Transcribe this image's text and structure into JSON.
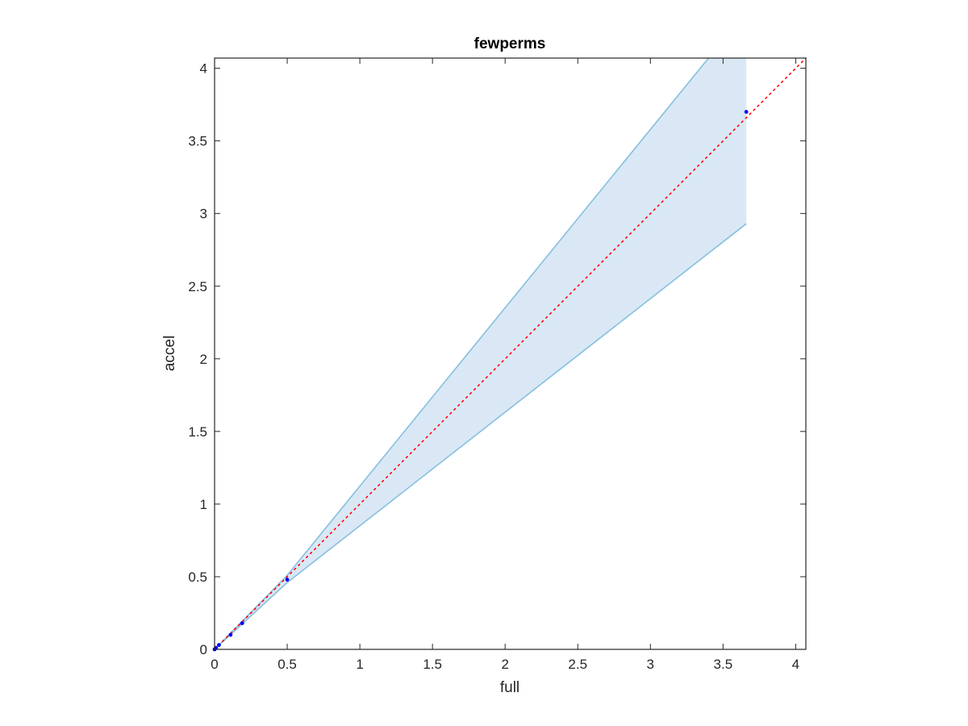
{
  "chart_data": {
    "type": "scatter",
    "title": "fewperms",
    "xlabel": "full",
    "ylabel": "accel",
    "xlim": [
      0,
      4.07
    ],
    "ylim": [
      0,
      4.07
    ],
    "x_ticks": [
      0,
      0.5,
      1,
      1.5,
      2,
      2.5,
      3,
      3.5,
      4
    ],
    "y_ticks": [
      0,
      0.5,
      1,
      1.5,
      2,
      2.5,
      3,
      3.5,
      4
    ],
    "x_tick_labels": [
      "0",
      "0.5",
      "1",
      "1.5",
      "2",
      "2.5",
      "3",
      "3.5",
      "4"
    ],
    "y_tick_labels": [
      "0",
      "0.5",
      "1",
      "1.5",
      "2",
      "2.5",
      "3",
      "3.5",
      "4"
    ],
    "grid": false,
    "series": [
      {
        "kind": "points",
        "color": "#0000ff",
        "points": [
          {
            "x": 0.0,
            "y": 0.0
          },
          {
            "x": 0.01,
            "y": 0.01
          },
          {
            "x": 0.03,
            "y": 0.03
          },
          {
            "x": 0.11,
            "y": 0.1
          },
          {
            "x": 0.19,
            "y": 0.18
          },
          {
            "x": 0.5,
            "y": 0.48
          },
          {
            "x": 3.66,
            "y": 3.7
          }
        ]
      },
      {
        "kind": "reference-line",
        "color": "#ff0000",
        "style": "dotted",
        "points": [
          {
            "x": 0,
            "y": 0
          },
          {
            "x": 4.07,
            "y": 4.07
          }
        ]
      },
      {
        "kind": "band",
        "fill": "#d9e8f4",
        "edge": "#86bfe1",
        "upper": [
          {
            "x": 0,
            "y": 0
          },
          {
            "x": 0.5,
            "y": 0.51
          },
          {
            "x": 3.4,
            "y": 4.07
          }
        ],
        "upper_cap": {
          "x0": 3.4,
          "x1": 3.66,
          "y": 4.07
        },
        "lower": [
          {
            "x": 0,
            "y": 0
          },
          {
            "x": 0.5,
            "y": 0.46
          },
          {
            "x": 3.66,
            "y": 2.93
          }
        ]
      }
    ]
  }
}
